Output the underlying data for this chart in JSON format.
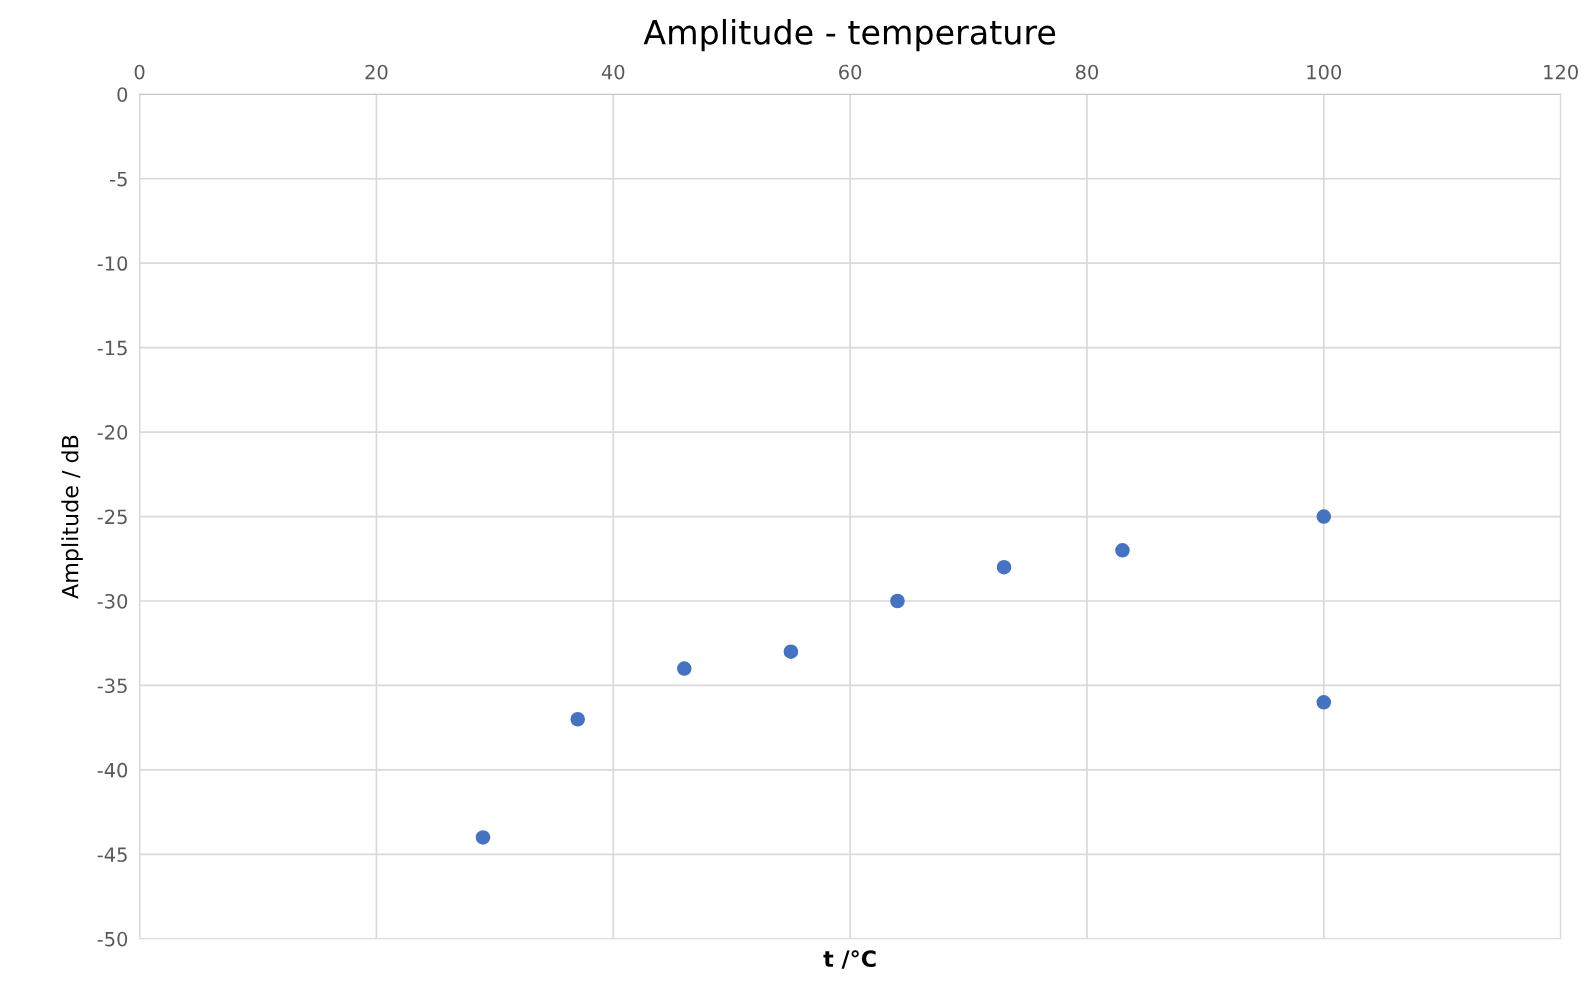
{
  "chart_data": {
    "type": "scatter",
    "title": "Amplitude - temperature",
    "xlabel": "t /°C",
    "ylabel": "Amplitude / dB",
    "x": [
      29,
      37,
      46,
      55,
      64,
      73,
      83,
      100,
      100
    ],
    "series": [
      {
        "color": "#4472c4",
        "values": [
          -44,
          -37,
          -34,
          -33,
          -30,
          -28,
          -27,
          -25,
          -36
        ]
      }
    ],
    "xlim": [
      0,
      120
    ],
    "xticks": [
      0,
      20,
      40,
      60,
      80,
      100,
      120
    ],
    "ylim": [
      -50,
      0
    ],
    "yticks": [
      0,
      -5,
      -10,
      -15,
      -20,
      -25,
      -30,
      -35,
      -40,
      -45,
      -50
    ],
    "grid": true,
    "marker": "circle"
  }
}
